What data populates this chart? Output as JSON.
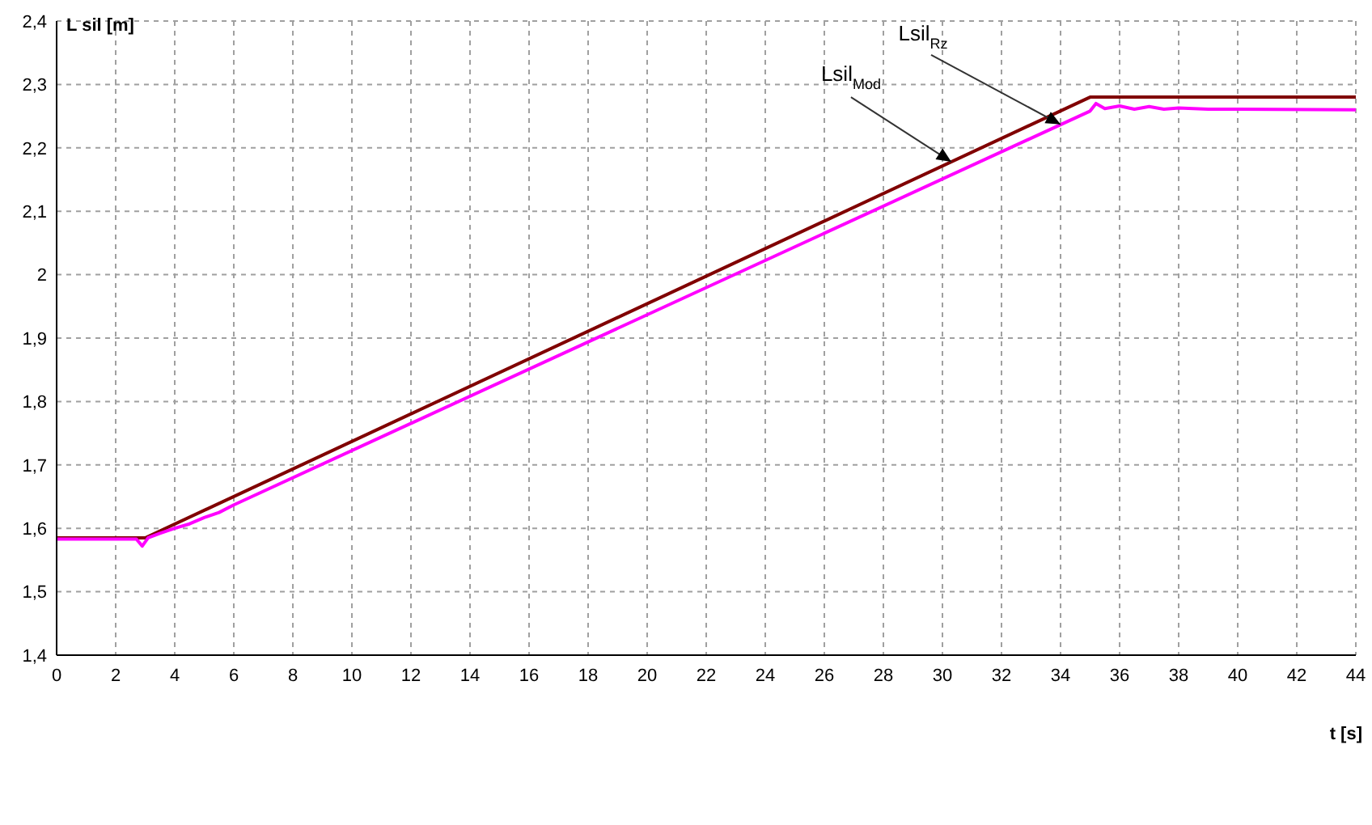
{
  "chart_data": {
    "type": "line",
    "xlabel": "t [s]",
    "ylabel": "L sil [m]",
    "xlim": [
      0,
      44
    ],
    "xticks": [
      0,
      2,
      4,
      6,
      8,
      10,
      12,
      14,
      16,
      18,
      20,
      22,
      24,
      26,
      28,
      30,
      32,
      34,
      36,
      38,
      40,
      42,
      44
    ],
    "ylim": [
      1.4,
      2.4
    ],
    "yticks": [
      {
        "value": 1.4,
        "label": "1,4"
      },
      {
        "value": 1.5,
        "label": "1,5"
      },
      {
        "value": 1.6,
        "label": "1,6"
      },
      {
        "value": 1.7,
        "label": "1,7"
      },
      {
        "value": 1.8,
        "label": "1,8"
      },
      {
        "value": 1.9,
        "label": "1,9"
      },
      2,
      {
        "value": 2.1,
        "label": "2,1"
      },
      {
        "value": 2.2,
        "label": "2,2"
      },
      {
        "value": 2.3,
        "label": "2,3"
      },
      {
        "value": 2.4,
        "label": "2,4"
      }
    ],
    "grid": true,
    "legend": false,
    "marker": "none",
    "line_style": "solid",
    "series": [
      {
        "color": "#800000",
        "x": [
          0,
          3,
          35,
          44
        ],
        "values": [
          1.585,
          1.585,
          2.28,
          2.28
        ]
      },
      {
        "color": "#ff00ff",
        "x": [
          0,
          2.7,
          2.9,
          3.1,
          3.5,
          4,
          4.5,
          5,
          5.5,
          6,
          35,
          35.2,
          35.5,
          36,
          36.5,
          37,
          37.5,
          38,
          39,
          40,
          44
        ],
        "values": [
          1.583,
          1.583,
          1.572,
          1.585,
          1.592,
          1.6,
          1.607,
          1.617,
          1.625,
          1.637,
          2.258,
          2.27,
          2.262,
          2.266,
          2.261,
          2.265,
          2.261,
          2.263,
          2.261,
          2.261,
          2.26
        ]
      }
    ],
    "annotations": [
      {
        "text": "Lsil$_{Rz}$",
        "x": 34,
        "y": 2.237
      },
      {
        "text": "Lsil$_{Mod}$",
        "x": 30.3,
        "y": 2.178
      }
    ]
  }
}
